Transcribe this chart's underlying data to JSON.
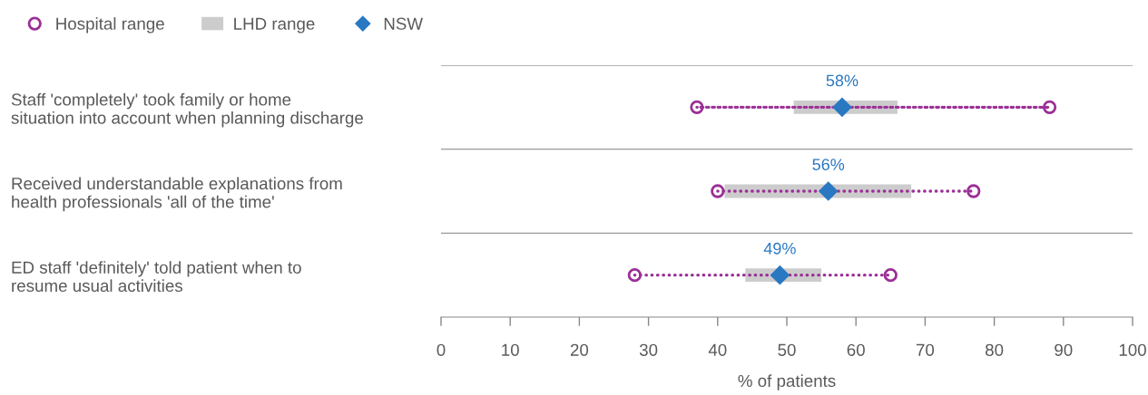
{
  "chart_data": {
    "type": "bar",
    "orientation": "horizontal",
    "xlabel": "% of patients",
    "categories": [
      "Staff 'completely' took family or home\nsituation into account when planning discharge",
      "Received understandable explanations from\nhealth professionals 'all of the time'",
      "ED staff 'definitely' told patient when to\nresume usual activities"
    ],
    "series": [
      {
        "type": "bar",
        "color": "#9b2f96",
        "line_style": "dotted",
        "base": [
          37,
          40,
          28
        ],
        "values": [
          51,
          37,
          37
        ]
      },
      {
        "name": "Hospital range",
        "type": "scatter",
        "color": "#9b2f96",
        "marker": "circle",
        "values": [
          37,
          40,
          28
        ]
      },
      {
        "type": "scatter",
        "color": "#9b2f96",
        "marker": "circle",
        "values": [
          88,
          77,
          65
        ]
      },
      {
        "name": "LHD range",
        "type": "bar",
        "color": "#cccccc",
        "base": [
          51,
          41,
          44
        ],
        "values": [
          15,
          27,
          11
        ]
      },
      {
        "name": "NSW",
        "type": "scatter",
        "color": "#2a78c2",
        "marker": "diamond",
        "values": [
          58,
          56,
          49
        ],
        "value_labels": [
          "58%",
          "56%",
          "49%"
        ]
      }
    ],
    "xlim": [
      0,
      100
    ],
    "xticks": [
      0,
      10,
      20,
      30,
      40,
      50,
      60,
      70,
      80,
      90,
      100
    ],
    "grid": "y",
    "legend": "top left"
  }
}
